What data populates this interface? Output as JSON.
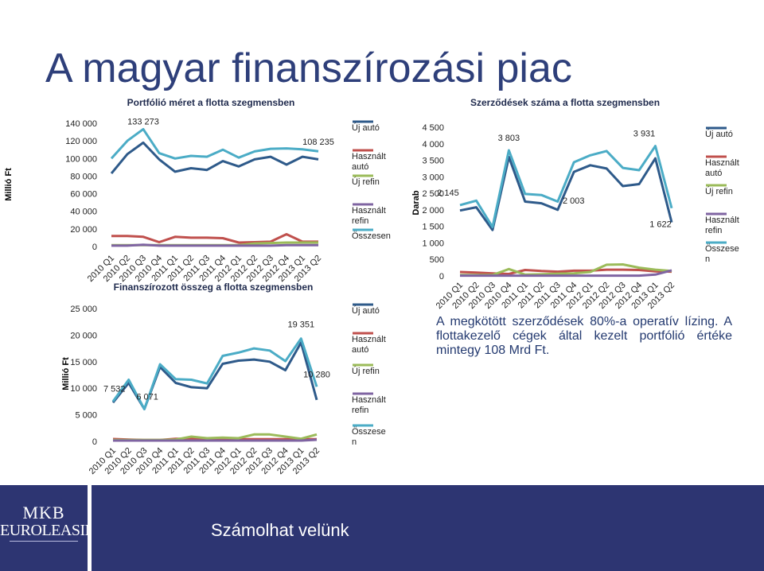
{
  "slide": {
    "title": "A magyar finanszírozási piac",
    "note": "A megkötött szerződések 80%-a operatív lízing. A flottakezelő cégek által kezelt portfólió értéke mintegy 108 Mrd Ft.",
    "footer": {
      "logo_line1": "MKB",
      "logo_line2": "EUROLEASING",
      "slogan": "Számolhat velünk"
    }
  },
  "chart_data": [
    {
      "type": "line",
      "title": "Portfólió méret a flotta szegmensben",
      "ylabel": "Millió Ft",
      "ylim": [
        0,
        140000
      ],
      "yticks": [
        0,
        20000,
        40000,
        60000,
        80000,
        100000,
        120000,
        140000
      ],
      "ytick_labels": [
        "0",
        "20 000",
        "40 000",
        "60 000",
        "80 000",
        "100 000",
        "120 000",
        "140 000"
      ],
      "categories": [
        "2010 Q1",
        "2010 Q2",
        "2010 Q3",
        "2010 Q4",
        "2011 Q1",
        "2011 Q2",
        "2011 Q3",
        "2011 Q4",
        "2012 Q1",
        "2012 Q2",
        "2012 Q3",
        "2012 Q4",
        "2013 Q1",
        "2013 Q2"
      ],
      "series": [
        {
          "name": "Új autó",
          "color": "#2e5a8a",
          "values": [
            83000,
            105000,
            118000,
            99000,
            85000,
            89000,
            87000,
            97000,
            91000,
            99000,
            102000,
            93000,
            102000,
            99000
          ]
        },
        {
          "name": "Használt autó",
          "color": "#c0504d",
          "values": [
            12000,
            12000,
            11000,
            5000,
            11000,
            10000,
            10000,
            9500,
            4500,
            5000,
            5500,
            14000,
            5500,
            5500
          ]
        },
        {
          "name": "Új refin",
          "color": "#9bbb59",
          "values": [
            1500,
            1500,
            1500,
            1500,
            1500,
            1500,
            1500,
            1500,
            1500,
            3500,
            4000,
            4500,
            4500,
            4500
          ]
        },
        {
          "name": "Használt refin",
          "color": "#7f64a2",
          "values": [
            1000,
            1000,
            2000,
            1000,
            1000,
            1000,
            1000,
            1000,
            1000,
            1000,
            1000,
            1500,
            1500,
            1500
          ]
        },
        {
          "name": "Összesen",
          "color": "#4bacc6",
          "values": [
            100000,
            120000,
            133273,
            106000,
            100000,
            103000,
            102000,
            110000,
            101000,
            108000,
            111000,
            111500,
            110500,
            108235
          ]
        }
      ],
      "annotations": [
        {
          "text": "133 273",
          "series": "Összesen",
          "index": 2
        },
        {
          "text": "108 235",
          "series": "Összesen",
          "index": 13
        }
      ]
    },
    {
      "type": "line",
      "title": "Finanszírozott összeg a flotta szegmensben",
      "ylabel": "Millió Ft",
      "ylim": [
        0,
        25000
      ],
      "yticks": [
        0,
        5000,
        10000,
        15000,
        20000,
        25000
      ],
      "ytick_labels": [
        "0",
        "5 000",
        "10 000",
        "15 000",
        "20 000",
        "25 000"
      ],
      "categories": [
        "2010 Q1",
        "2010 Q2",
        "2010 Q3",
        "2010 Q4",
        "2011 Q1",
        "2011 Q2",
        "2011 Q3",
        "2011 Q4",
        "2012 Q1",
        "2012 Q2",
        "2012 Q3",
        "2012 Q4",
        "2013 Q1",
        "2013 Q2"
      ],
      "series": [
        {
          "name": "Új autó",
          "color": "#2e5a8a",
          "values": [
            7300,
            11000,
            6071,
            14000,
            11000,
            10200,
            10000,
            14600,
            15200,
            15400,
            15000,
            13400,
            18600,
            7800
          ]
        },
        {
          "name": "Használt autó",
          "color": "#c0504d",
          "values": [
            450,
            350,
            250,
            250,
            500,
            500,
            400,
            350,
            400,
            400,
            400,
            400,
            400,
            400
          ]
        },
        {
          "name": "Új refin",
          "color": "#9bbb59",
          "values": [
            250,
            250,
            250,
            250,
            350,
            900,
            600,
            700,
            600,
            1300,
            1300,
            900,
            500,
            1300
          ]
        },
        {
          "name": "Használt refin",
          "color": "#7f64a2",
          "values": [
            150,
            150,
            150,
            150,
            150,
            150,
            150,
            150,
            150,
            150,
            150,
            150,
            150,
            300
          ]
        },
        {
          "name": "Összesen",
          "color": "#4bacc6",
          "values": [
            7532,
            11600,
            6071,
            14500,
            11700,
            11600,
            10900,
            16100,
            16700,
            17500,
            17100,
            15100,
            19351,
            10280
          ]
        }
      ],
      "annotations": [
        {
          "text": "7 532",
          "series": "Összesen",
          "index": 0
        },
        {
          "text": "6 071",
          "series": "Összesen",
          "index": 2
        },
        {
          "text": "19 351",
          "series": "Összesen",
          "index": 12
        },
        {
          "text": "10 280",
          "series": "Összesen",
          "index": 13
        }
      ]
    },
    {
      "type": "line",
      "title": "Szerződések száma a flotta szegmensben",
      "ylabel": "Darab",
      "ylim": [
        0,
        4500
      ],
      "yticks": [
        0,
        500,
        1000,
        1500,
        2000,
        2500,
        3000,
        3500,
        4000,
        4500
      ],
      "ytick_labels": [
        "0",
        "500",
        "1 000",
        "1 500",
        "2 000",
        "2 500",
        "3 000",
        "3 500",
        "4 000",
        "4 500"
      ],
      "categories": [
        "2010 Q1",
        "2010 Q2",
        "2010 Q3",
        "2010 Q4",
        "2011 Q1",
        "2011 Q2",
        "2011 Q3",
        "2011 Q4",
        "2012 Q1",
        "2012 Q2",
        "2012 Q3",
        "2012 Q4",
        "2013 Q1",
        "2013 Q2"
      ],
      "series": [
        {
          "name": "Új autó",
          "color": "#2e5a8a",
          "values": [
            1980,
            2080,
            1390,
            3600,
            2250,
            2200,
            2003,
            3150,
            3350,
            3250,
            2720,
            2780,
            3560,
            1622
          ]
        },
        {
          "name": "Használt autó",
          "color": "#c0504d",
          "values": [
            120,
            100,
            80,
            60,
            180,
            150,
            130,
            160,
            160,
            190,
            190,
            180,
            140,
            130
          ]
        },
        {
          "name": "Új refin",
          "color": "#9bbb59",
          "values": [
            30,
            30,
            30,
            210,
            40,
            50,
            70,
            80,
            120,
            340,
            350,
            250,
            190,
            150
          ]
        },
        {
          "name": "Használt refin",
          "color": "#7f64a2",
          "values": [
            10,
            10,
            10,
            10,
            10,
            10,
            10,
            10,
            10,
            10,
            10,
            10,
            40,
            170
          ]
        },
        {
          "name": "Összesen",
          "color": "#4bacc6",
          "values": [
            2145,
            2280,
            1480,
            3803,
            2480,
            2450,
            2250,
            3440,
            3650,
            3780,
            3270,
            3200,
            3931,
            2050
          ]
        }
      ],
      "annotations": [
        {
          "text": "2 145",
          "series": "Összesen",
          "index": 0
        },
        {
          "text": "3 803",
          "series": "Összesen",
          "index": 3
        },
        {
          "text": "2 003",
          "series": "Új autó",
          "index": 6
        },
        {
          "text": "3 931",
          "series": "Összesen",
          "index": 12
        },
        {
          "text": "1 622",
          "series": "Új autó",
          "index": 13
        }
      ]
    }
  ]
}
